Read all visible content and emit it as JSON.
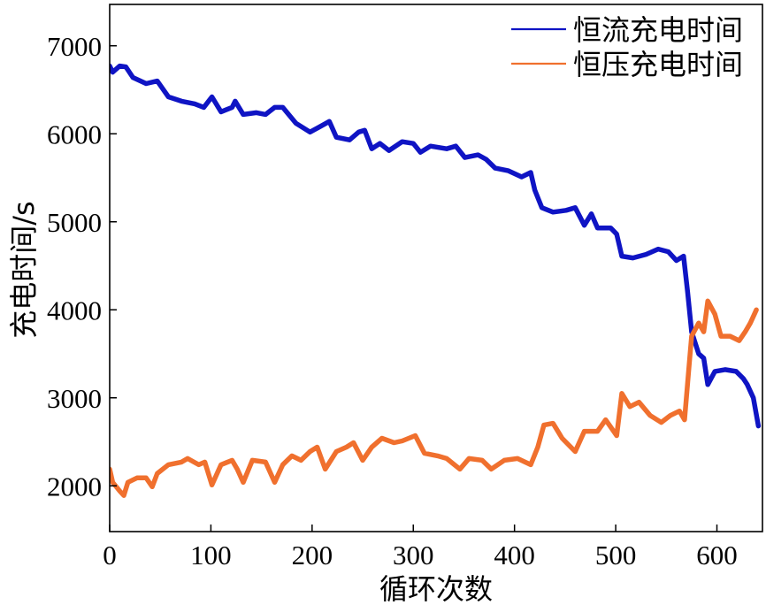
{
  "chart_data": {
    "type": "line",
    "xlabel": "循环次数",
    "ylabel": "充电时间/s",
    "xlim": [
      0,
      645
    ],
    "ylim": [
      1480,
      7470
    ],
    "x_ticks": [
      0,
      100,
      200,
      300,
      400,
      500,
      600
    ],
    "y_ticks": [
      2000,
      3000,
      4000,
      5000,
      6000,
      7000
    ],
    "grid": false,
    "legend": "top-right",
    "series": [
      {
        "name": "恒流充电时间",
        "color": "#0f14c4",
        "x": [
          0,
          3,
          10,
          16,
          23,
          36,
          47,
          58,
          71,
          84,
          93,
          101,
          110,
          121,
          124,
          132,
          145,
          154,
          163,
          171,
          184,
          198,
          206,
          217,
          224,
          237,
          246,
          252,
          259,
          267,
          276,
          289,
          300,
          307,
          317,
          333,
          342,
          351,
          364,
          372,
          381,
          394,
          407,
          416,
          420,
          427,
          438,
          451,
          460,
          469,
          476,
          482,
          495,
          501,
          506,
          517,
          530,
          542,
          552,
          560,
          567,
          571,
          575,
          582,
          587,
          591,
          598,
          608,
          619,
          626,
          630,
          636,
          641
        ],
        "y": [
          6770,
          6700,
          6770,
          6760,
          6640,
          6570,
          6600,
          6420,
          6370,
          6340,
          6300,
          6420,
          6250,
          6300,
          6370,
          6220,
          6240,
          6220,
          6300,
          6300,
          6120,
          6020,
          6070,
          6140,
          5960,
          5930,
          6020,
          6040,
          5830,
          5890,
          5810,
          5910,
          5890,
          5790,
          5860,
          5830,
          5860,
          5730,
          5760,
          5710,
          5610,
          5580,
          5510,
          5560,
          5360,
          5160,
          5110,
          5130,
          5160,
          4960,
          5090,
          4930,
          4930,
          4860,
          4610,
          4590,
          4630,
          4690,
          4660,
          4560,
          4610,
          4210,
          3750,
          3500,
          3450,
          3150,
          3300,
          3320,
          3300,
          3220,
          3150,
          3000,
          2680
        ]
      },
      {
        "name": "恒压充电时间",
        "color": "#f0702e",
        "x": [
          0,
          3,
          10,
          14,
          18,
          27,
          36,
          42,
          47,
          58,
          71,
          77,
          88,
          94,
          101,
          110,
          121,
          126,
          132,
          141,
          154,
          163,
          171,
          180,
          189,
          198,
          205,
          213,
          224,
          234,
          241,
          250,
          259,
          269,
          281,
          289,
          302,
          311,
          324,
          333,
          346,
          355,
          368,
          377,
          390,
          403,
          416,
          423,
          429,
          438,
          447,
          460,
          469,
          482,
          490,
          501,
          506,
          514,
          523,
          534,
          545,
          554,
          563,
          568,
          572,
          575,
          582,
          587,
          591,
          598,
          604,
          613,
          622,
          628,
          633,
          639
        ],
        "y": [
          2190,
          2040,
          1940,
          1890,
          2040,
          2090,
          2090,
          1990,
          2140,
          2240,
          2270,
          2310,
          2240,
          2270,
          2010,
          2240,
          2290,
          2190,
          2040,
          2290,
          2270,
          2040,
          2240,
          2340,
          2290,
          2390,
          2440,
          2190,
          2390,
          2440,
          2490,
          2290,
          2440,
          2540,
          2490,
          2510,
          2570,
          2370,
          2340,
          2310,
          2190,
          2310,
          2290,
          2190,
          2290,
          2310,
          2240,
          2440,
          2690,
          2710,
          2540,
          2390,
          2620,
          2620,
          2750,
          2570,
          3050,
          2900,
          2950,
          2800,
          2720,
          2800,
          2850,
          2750,
          3300,
          3700,
          3850,
          3750,
          4100,
          3950,
          3700,
          3700,
          3650,
          3750,
          3850,
          4000
        ]
      }
    ]
  }
}
